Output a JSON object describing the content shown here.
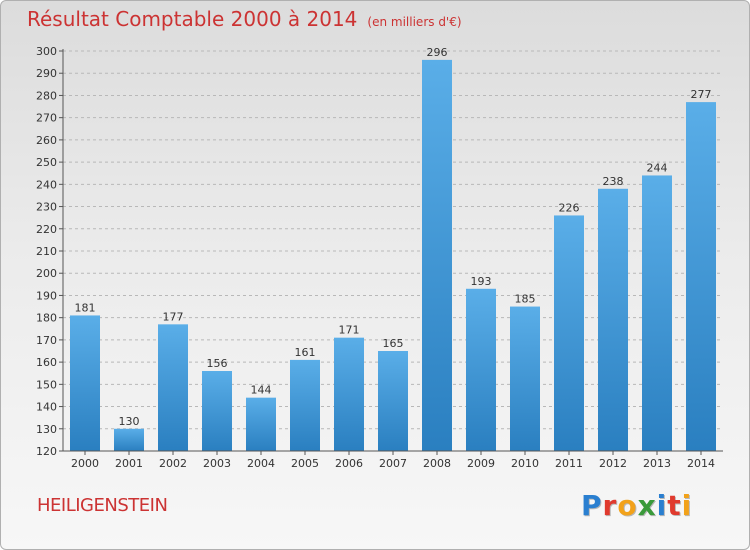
{
  "title": "Résultat Comptable 2000 à 2014",
  "subtitle": "(en milliers d'€)",
  "commune": "HEILIGENSTEIN",
  "logo": {
    "letters": [
      "P",
      "r",
      "o",
      "x",
      "i",
      "t",
      "i"
    ],
    "colors": [
      "#2a7fd0",
      "#e03a2e",
      "#f2a21a",
      "#3a9a3a",
      "#2a7fd0",
      "#e03a2e",
      "#f2a21a"
    ]
  },
  "colors": {
    "bar_top": "#5aaee8",
    "bar_bottom": "#2a7fc0",
    "title": "#cc3333"
  },
  "chart_data": {
    "type": "bar",
    "title": "Résultat Comptable 2000 à 2014",
    "subtitle": "(en milliers d'€)",
    "categories": [
      "2000",
      "2001",
      "2002",
      "2003",
      "2004",
      "2005",
      "2006",
      "2007",
      "2008",
      "2009",
      "2010",
      "2011",
      "2012",
      "2013",
      "2014"
    ],
    "values": [
      181,
      130,
      177,
      156,
      144,
      161,
      171,
      165,
      296,
      193,
      185,
      226,
      238,
      244,
      277
    ],
    "ylim": [
      120,
      300
    ],
    "yticks": [
      120,
      130,
      140,
      150,
      160,
      170,
      180,
      190,
      200,
      210,
      220,
      230,
      240,
      250,
      260,
      270,
      280,
      290,
      300
    ],
    "grid": "dashed-horizontal"
  }
}
